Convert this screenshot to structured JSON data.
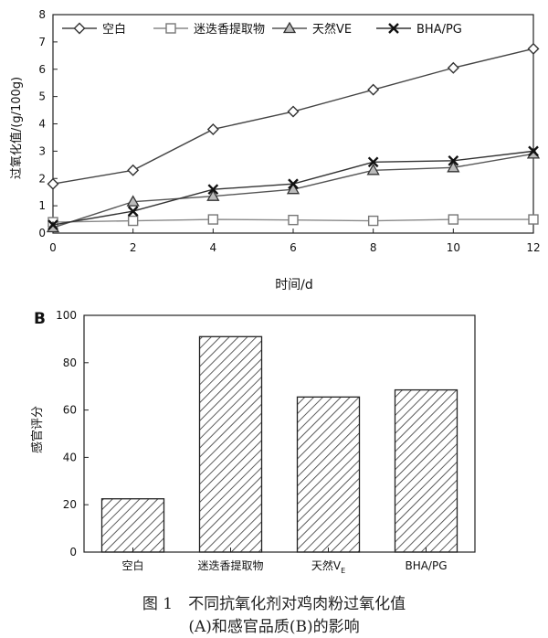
{
  "chart_data": [
    {
      "type": "line",
      "title": "",
      "xlabel": "时间/d",
      "ylabel": "过氧化值/(g/100g)",
      "xlim": [
        0,
        12
      ],
      "ylim": [
        0,
        8
      ],
      "x_ticks": [
        "0",
        "2",
        "4",
        "6",
        "8",
        "10",
        "12"
      ],
      "y_ticks": [
        "0",
        "1",
        "2",
        "3",
        "4",
        "5",
        "6",
        "7",
        "8"
      ],
      "legend_position": "top",
      "x": [
        0,
        2,
        4,
        6,
        8,
        10,
        12
      ],
      "series": [
        {
          "name": "空白",
          "marker": "diamond",
          "values": [
            1.8,
            2.3,
            3.8,
            4.45,
            5.25,
            6.05,
            6.75
          ]
        },
        {
          "name": "迷迭香提取物",
          "marker": "square",
          "values": [
            0.4,
            0.45,
            0.5,
            0.48,
            0.45,
            0.5,
            0.5
          ]
        },
        {
          "name": "天然VE",
          "marker": "triangle",
          "values": [
            0.2,
            1.15,
            1.35,
            1.6,
            2.3,
            2.4,
            2.9
          ]
        },
        {
          "name": "BHA/PG",
          "marker": "x",
          "values": [
            0.3,
            0.8,
            1.6,
            1.8,
            2.6,
            2.65,
            3.0
          ]
        }
      ]
    },
    {
      "type": "bar",
      "panel_label": "B",
      "title": "",
      "xlabel": "",
      "ylabel": "感官评分",
      "ylim": [
        0,
        100
      ],
      "y_ticks": [
        "0",
        "20",
        "40",
        "60",
        "80",
        "100"
      ],
      "categories": [
        "空白",
        "迷迭香提取物",
        "天然V",
        "BHA/PG"
      ],
      "category_subscripts": [
        "",
        "",
        "E",
        ""
      ],
      "values": [
        22.5,
        91,
        65.5,
        68.5
      ],
      "bar_pattern": "diagonal-hatch"
    }
  ],
  "caption": {
    "line1": "图 1　不同抗氧化剂对鸡肉粉过氧化值",
    "line2": "(A)和感官品质(B)的影响"
  }
}
